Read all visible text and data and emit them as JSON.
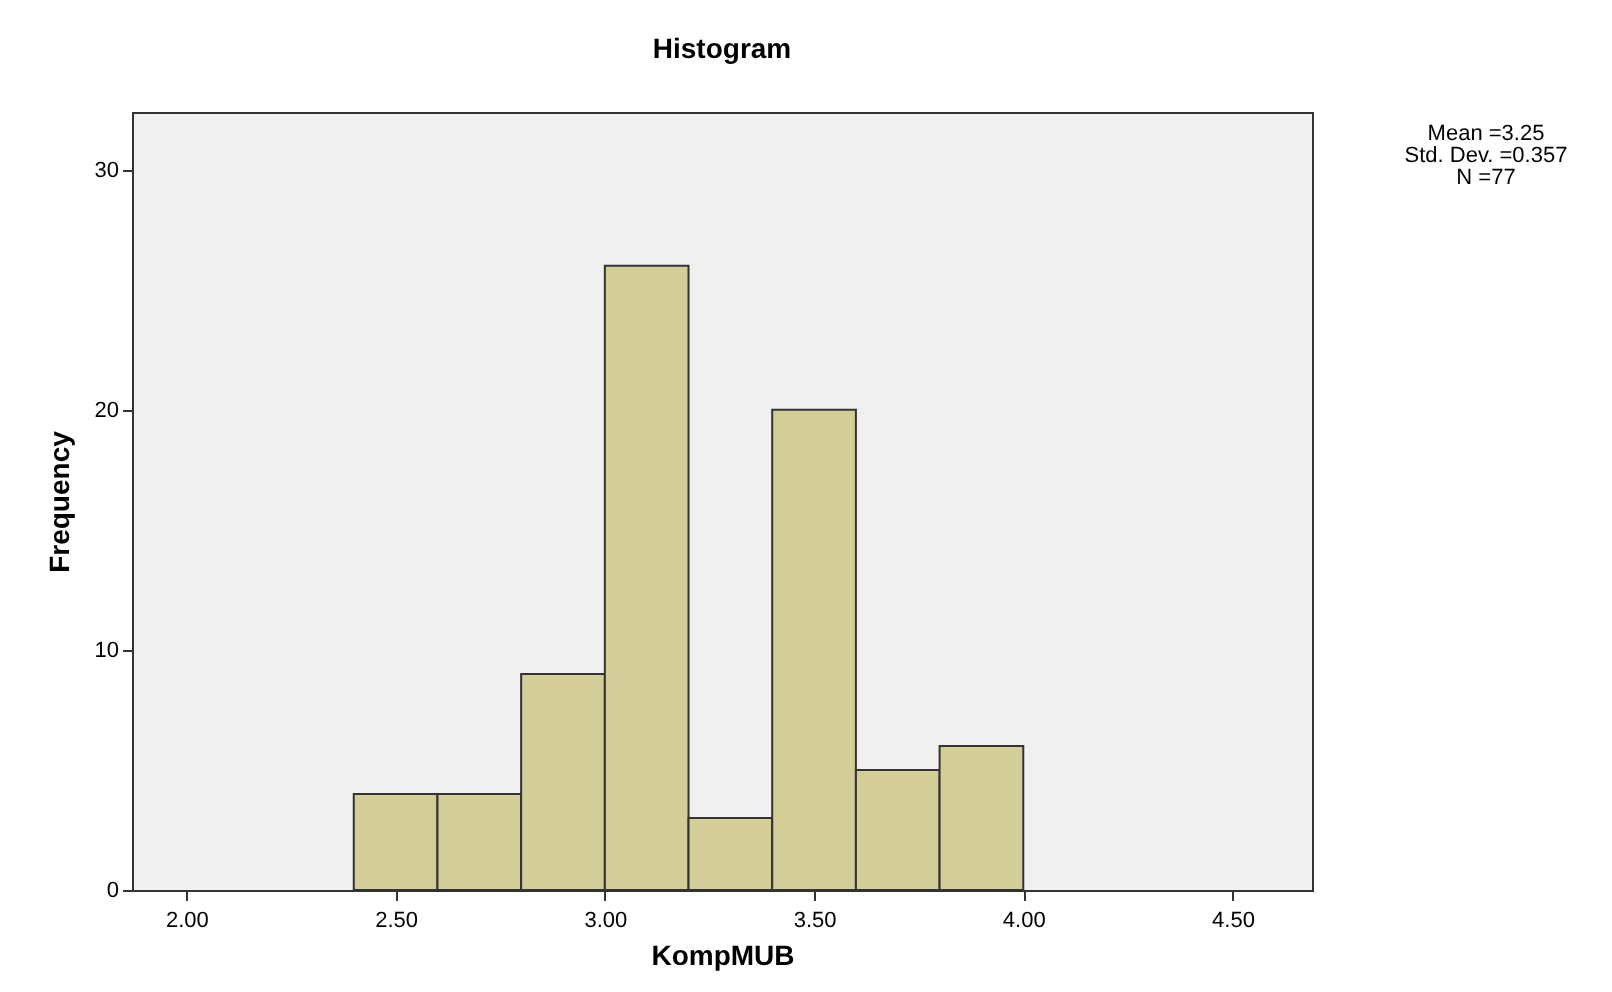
{
  "chart_data": {
    "type": "histogram",
    "title": "Histogram",
    "xlabel": "KompMUB",
    "ylabel": "Frequency",
    "bins": [
      2.4,
      2.6,
      2.8,
      3.0,
      3.2,
      3.4,
      3.6,
      3.8,
      4.0
    ],
    "values": [
      4,
      4,
      9,
      26,
      3,
      20,
      5,
      6
    ],
    "color": "#d3ce97",
    "xlim": [
      1.87,
      4.69
    ],
    "xticks": [
      {
        "value": 2,
        "label": "2.00"
      },
      {
        "value": 2.5,
        "label": "2.50"
      },
      {
        "value": 3,
        "label": "3.00"
      },
      {
        "value": 3.5,
        "label": "3.50"
      },
      {
        "value": 4,
        "label": "4.00"
      },
      {
        "value": 4.5,
        "label": "4.50"
      }
    ],
    "ylim": [
      0,
      32.4
    ],
    "yticks": [
      0,
      10,
      20,
      30
    ],
    "grid": false,
    "annotations": [
      "Mean =3.25",
      "Std. Dev. =0.357",
      "N =77"
    ]
  }
}
